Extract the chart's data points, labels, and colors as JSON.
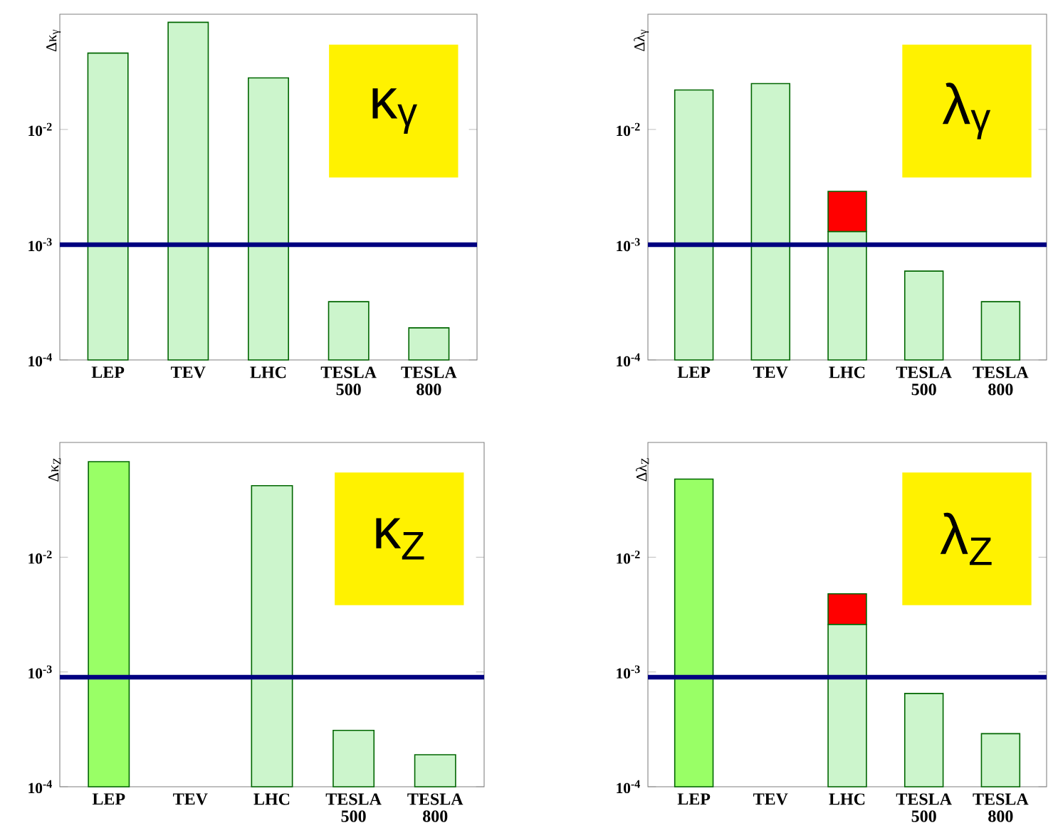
{
  "chart_data": [
    {
      "type": "bar",
      "ylabel": "Δκ$_{γ}$",
      "categories": [
        "LEP",
        "TEV",
        "LHC",
        "TESLA 500",
        "TESLA 800"
      ],
      "log": "y",
      "ylim": [
        0.0001,
        0.1
      ],
      "yticks": [
        {
          "value": 0.0001,
          "label": "10$^{-4}$"
        },
        {
          "value": 0.001,
          "label": "10$^{-3}$"
        },
        {
          "value": 0.01,
          "label": "10$^{-2}$"
        }
      ],
      "series": [
        {
          "color": "#ccf5cc",
          "values": [
            0.046,
            0.085,
            0.028,
            0.00032,
            0.00019
          ]
        }
      ],
      "ref_lines": [
        {
          "axis": "y",
          "value": 0.001,
          "color": "#000080"
        }
      ],
      "annotations": [
        "κ$_{γ}$"
      ]
    },
    {
      "type": "bar",
      "ylabel": "Δλ$_{γ}$",
      "categories": [
        "LEP",
        "TEV",
        "LHC",
        "TESLA 500",
        "TESLA 800"
      ],
      "log": "y",
      "ylim": [
        0.0001,
        0.1
      ],
      "yticks": [
        {
          "value": 0.0001,
          "label": "10$^{-4}$"
        },
        {
          "value": 0.001,
          "label": "10$^{-3}$"
        },
        {
          "value": 0.01,
          "label": "10$^{-2}$"
        }
      ],
      "stacked": true,
      "series": [
        {
          "color": "#ccf5cc",
          "values": [
            0.022,
            0.025,
            0.0013,
            0.00059,
            0.00032
          ]
        },
        {
          "color": "#ff0000",
          "values": [
            null,
            null,
            0.0016,
            null,
            null
          ]
        }
      ],
      "ref_lines": [
        {
          "axis": "y",
          "value": 0.001,
          "color": "#000080"
        }
      ],
      "annotations": [
        "λ$_{γ}$"
      ]
    },
    {
      "type": "bar",
      "ylabel": "Δκ$_{Z}$",
      "categories": [
        "LEP",
        "TEV",
        "LHC",
        "TESLA 500",
        "TESLA 800"
      ],
      "log": "y",
      "ylim": [
        0.0001,
        0.1
      ],
      "yticks": [
        {
          "value": 0.0001,
          "label": "10$^{-4}$"
        },
        {
          "value": 0.001,
          "label": "10$^{-3}$"
        },
        {
          "value": 0.01,
          "label": "10$^{-2}$"
        }
      ],
      "series": [
        {
          "color": "#ccf5cc",
          "colors": [
            "#99ff66",
            "#ccf5cc",
            "#ccf5cc",
            "#ccf5cc",
            "#ccf5cc"
          ],
          "values": [
            0.068,
            null,
            0.042,
            0.00031,
            0.00019
          ]
        }
      ],
      "ref_lines": [
        {
          "axis": "y",
          "value": 0.0009,
          "color": "#000080"
        }
      ],
      "annotations": [
        "κ$_{Z}$"
      ]
    },
    {
      "type": "bar",
      "ylabel": "Δλ$_{Z}$",
      "categories": [
        "LEP",
        "TEV",
        "LHC",
        "TESLA 500",
        "TESLA 800"
      ],
      "log": "y",
      "ylim": [
        0.0001,
        0.1
      ],
      "yticks": [
        {
          "value": 0.0001,
          "label": "10$^{-4}$"
        },
        {
          "value": 0.001,
          "label": "10$^{-3}$"
        },
        {
          "value": 0.01,
          "label": "10$^{-2}$"
        }
      ],
      "stacked": true,
      "series": [
        {
          "color": "#ccf5cc",
          "colors": [
            "#99ff66",
            "#ccf5cc",
            "#ccf5cc",
            "#ccf5cc",
            "#ccf5cc"
          ],
          "values": [
            0.048,
            null,
            0.0026,
            0.00065,
            0.00029
          ]
        },
        {
          "color": "#ff0000",
          "values": [
            null,
            null,
            0.0022,
            null,
            null
          ]
        }
      ],
      "ref_lines": [
        {
          "axis": "y",
          "value": 0.0009,
          "color": "#000080"
        }
      ],
      "annotations": [
        "λ$_{Z}$"
      ]
    }
  ]
}
